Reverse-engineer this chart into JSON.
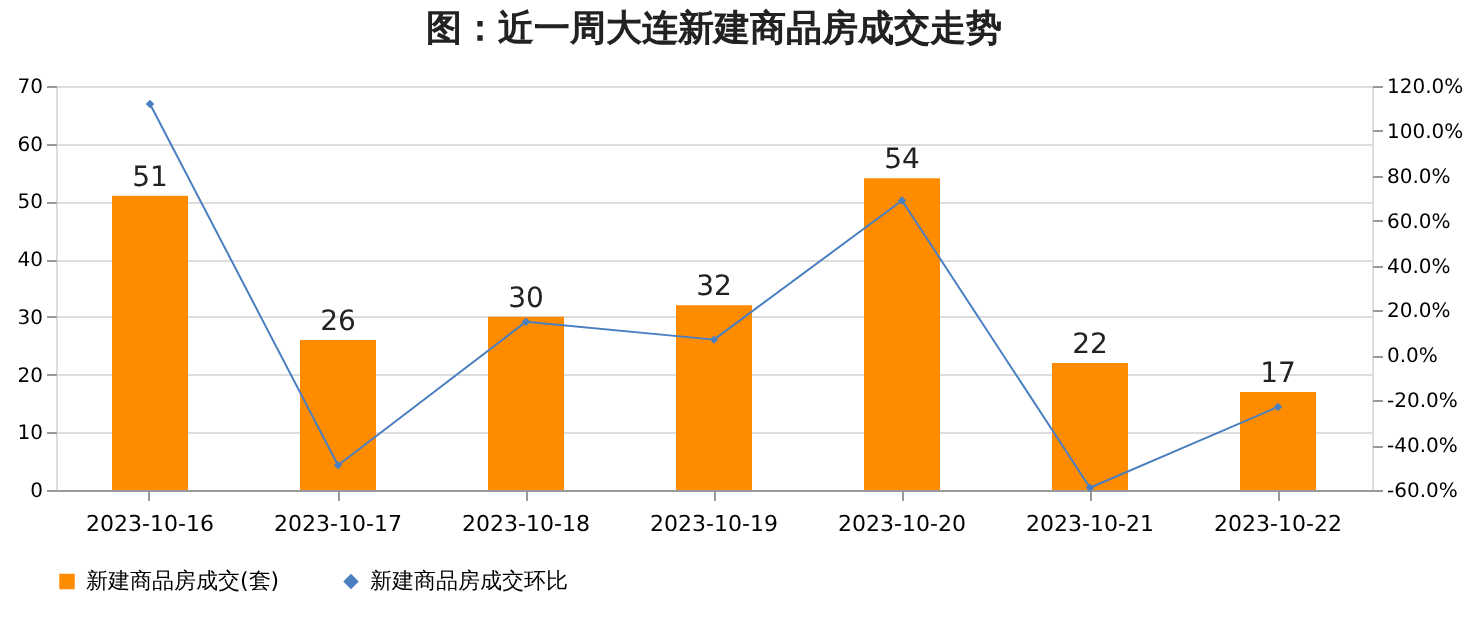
{
  "chart_data": {
    "type": "bar",
    "title": "图：近一周大连新建商品房成交走势",
    "categories": [
      "2023-10-16",
      "2023-10-17",
      "2023-10-18",
      "2023-10-19",
      "2023-10-20",
      "2023-10-21",
      "2023-10-22"
    ],
    "series": [
      {
        "name": "新建商品房成交(套)",
        "color": "#ff8c00",
        "values": [
          51,
          26,
          30,
          32,
          54,
          22,
          17
        ],
        "value_labels": [
          "51",
          "26",
          "30",
          "32",
          "54",
          "22",
          "17"
        ]
      },
      {
        "name": "新建商品房成交环比",
        "type": "line",
        "axis": "y2",
        "color": "#4a7fc0",
        "marker": "diamond",
        "values": [
          112,
          -49,
          15,
          7,
          69,
          -59,
          -23
        ]
      }
    ],
    "ylim": [
      0,
      70
    ],
    "yticks": [
      0,
      10,
      20,
      30,
      40,
      50,
      60,
      70
    ],
    "y2lim": [
      -60,
      120
    ],
    "y2ticks": [
      {
        "value": -60,
        "label": "-60.0%"
      },
      {
        "value": -40,
        "label": "-40.0%"
      },
      {
        "value": -20,
        "label": "-20.0%"
      },
      {
        "value": 0,
        "label": "0.0%"
      },
      {
        "value": 20,
        "label": "20.0%"
      },
      {
        "value": 40,
        "label": "40.0%"
      },
      {
        "value": 60,
        "label": "60.0%"
      },
      {
        "value": 80,
        "label": "80.0%"
      },
      {
        "value": 100,
        "label": "100.0%"
      },
      {
        "value": 120,
        "label": "120.0%"
      }
    ],
    "grid": "y",
    "legend": "bottom"
  }
}
